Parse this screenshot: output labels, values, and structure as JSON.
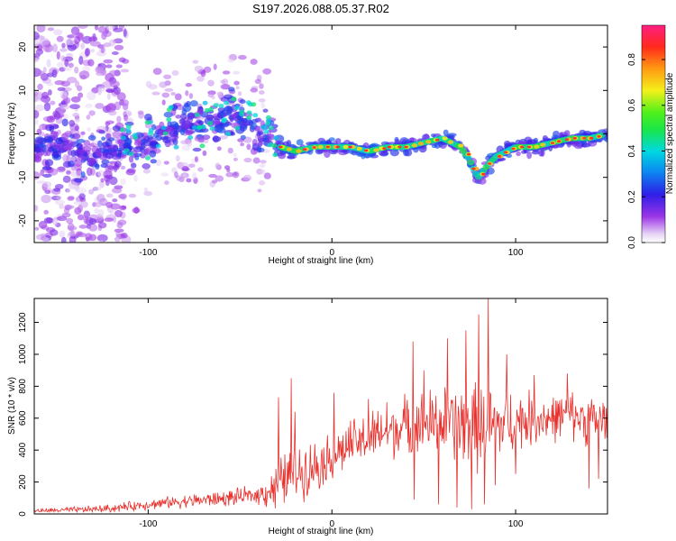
{
  "title": "S197.2026.088.05.37.R02",
  "chart_data": [
    {
      "type": "heatmap",
      "name": "spectrogram",
      "xlabel": "Height of straight line (km)",
      "ylabel": "Frequency (Hz)",
      "xlim": [
        -162,
        150
      ],
      "ylim": [
        -25,
        25
      ],
      "xticks": [
        -100,
        0,
        100
      ],
      "yticks": [
        -20,
        -10,
        0,
        10,
        20
      ],
      "ridge": {
        "x": [
          -162,
          -150,
          -140,
          -130,
          -120,
          -110,
          -100,
          -90,
          -80,
          -70,
          -62,
          -55,
          -50,
          -40,
          -33,
          -28,
          -20,
          -10,
          0,
          10,
          20,
          30,
          40,
          50,
          60,
          70,
          75,
          78,
          80,
          85,
          90,
          100,
          110,
          120,
          130,
          140,
          150
        ],
        "y": [
          -3,
          -3,
          -4,
          -5,
          -4,
          -3,
          -2,
          1,
          2,
          2,
          4,
          5,
          4,
          1,
          0,
          -3,
          -4,
          -3,
          -3,
          -3,
          -4,
          -3,
          -3,
          -2,
          -1,
          -3,
          -6,
          -9,
          -10,
          -7,
          -5,
          -3,
          -3,
          -2,
          -1,
          -1,
          0
        ]
      },
      "colorbar": {
        "label": "Normalized spectral amplitude",
        "range": [
          0,
          0.95
        ],
        "ticks": [
          0.0,
          0.2,
          0.4,
          0.6,
          0.8
        ],
        "tick_labels": [
          "0.0",
          "0.2",
          "0.4",
          "0.6",
          "0.8"
        ]
      }
    },
    {
      "type": "line",
      "name": "snr",
      "xlabel": "Height of straight line (km)",
      "ylabel": "SNR (10 * v/v)",
      "xlim": [
        -162,
        150
      ],
      "ylim": [
        0,
        1350
      ],
      "xticks": [
        -100,
        0,
        100
      ],
      "yticks": [
        0,
        200,
        400,
        600,
        800,
        1000,
        1200
      ],
      "color": "#e8302c",
      "trend": {
        "x": [
          -162,
          -140,
          -120,
          -100,
          -80,
          -60,
          -40,
          -30,
          -25,
          -20,
          -10,
          0,
          10,
          20,
          30,
          40,
          50,
          60,
          70,
          80,
          90,
          100,
          110,
          120,
          130,
          140,
          150
        ],
        "y": [
          20,
          25,
          35,
          60,
          80,
          95,
          120,
          170,
          230,
          260,
          300,
          360,
          430,
          470,
          520,
          550,
          560,
          570,
          560,
          540,
          560,
          580,
          600,
          600,
          620,
          590,
          580
        ]
      },
      "spread": {
        "x": [
          -162,
          -100,
          -40,
          -30,
          -20,
          0,
          20,
          40,
          60,
          80,
          100,
          120,
          150
        ],
        "y": [
          15,
          40,
          70,
          200,
          220,
          180,
          200,
          230,
          280,
          330,
          230,
          180,
          200
        ]
      },
      "peaks": {
        "x": [
          -29,
          -22,
          -20,
          1,
          20,
          30,
          44,
          50,
          58,
          63,
          73,
          80,
          85,
          95,
          110,
          128,
          145
        ],
        "y": [
          730,
          850,
          640,
          760,
          720,
          700,
          1080,
          900,
          1190,
          1100,
          1150,
          1250,
          1350,
          1000,
          870,
          880,
          1000
        ]
      },
      "dips": {
        "x": [
          45,
          58,
          68,
          76,
          83,
          89,
          100,
          140,
          145
        ],
        "y": [
          90,
          60,
          40,
          30,
          60,
          180,
          250,
          160,
          220
        ]
      },
      "n_samples": 900
    }
  ]
}
